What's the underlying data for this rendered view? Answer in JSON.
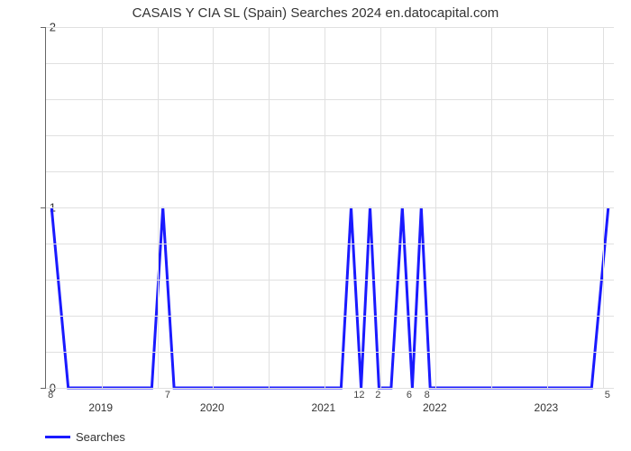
{
  "chart": {
    "type": "line",
    "title": "CASAIS Y CIA SL (Spain) Searches 2024 en.datocapital.com",
    "title_fontsize": 15,
    "background_color": "#ffffff",
    "grid_color": "#e0e0e0",
    "axis_color": "#666666",
    "line_color": "#1a1aff",
    "line_width": 3,
    "ylim": [
      0,
      2
    ],
    "yticks": [
      0,
      1,
      2
    ],
    "y_minor_count": 4,
    "xlim_years": [
      2018.5,
      2023.6
    ],
    "year_labels": [
      "2019",
      "2020",
      "2021",
      "2022",
      "2023"
    ],
    "data_labels": [
      {
        "x": 2018.55,
        "text": "8"
      },
      {
        "x": 2019.6,
        "text": "7"
      },
      {
        "x": 2021.32,
        "text": "12"
      },
      {
        "x": 2021.49,
        "text": "2"
      },
      {
        "x": 2021.77,
        "text": "6"
      },
      {
        "x": 2021.93,
        "text": "8"
      },
      {
        "x": 2023.55,
        "text": "5"
      }
    ],
    "points": [
      {
        "x": 2018.55,
        "y": 1.0
      },
      {
        "x": 2018.7,
        "y": 0.0
      },
      {
        "x": 2019.45,
        "y": 0.0
      },
      {
        "x": 2019.55,
        "y": 1.0
      },
      {
        "x": 2019.65,
        "y": 0.0
      },
      {
        "x": 2021.15,
        "y": 0.0
      },
      {
        "x": 2021.24,
        "y": 1.0
      },
      {
        "x": 2021.33,
        "y": 0.0
      },
      {
        "x": 2021.41,
        "y": 1.0
      },
      {
        "x": 2021.49,
        "y": 0.0
      },
      {
        "x": 2021.6,
        "y": 0.0
      },
      {
        "x": 2021.7,
        "y": 1.0
      },
      {
        "x": 2021.79,
        "y": 0.0
      },
      {
        "x": 2021.87,
        "y": 1.0
      },
      {
        "x": 2021.95,
        "y": 0.0
      },
      {
        "x": 2023.4,
        "y": 0.0
      },
      {
        "x": 2023.55,
        "y": 1.0
      }
    ],
    "legend_label": "Searches"
  }
}
